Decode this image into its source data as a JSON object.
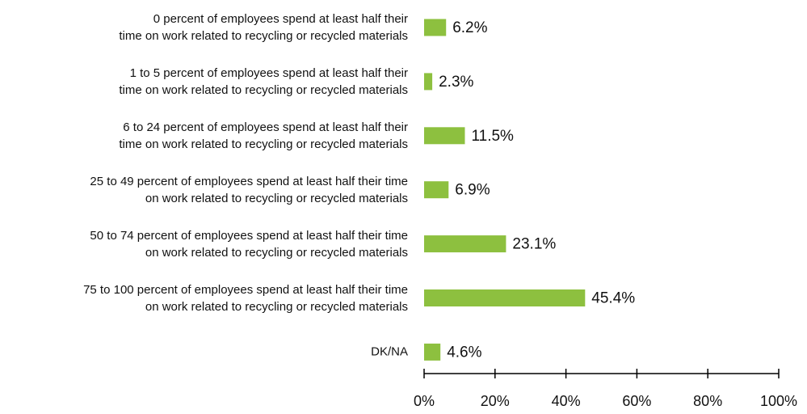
{
  "chart_data": {
    "type": "bar",
    "orientation": "horizontal",
    "categories": [
      "0 percent of employees spend at least half their\ntime on work related to recycling or recycled materials",
      "1 to 5 percent of employees spend at least half their\ntime on work related to recycling or recycled materials",
      "6 to 24 percent of employees spend at least half their\ntime on work related to recycling or recycled materials",
      "25 to 49 percent of employees spend at least half their time\non work related to recycling or recycled materials",
      "50 to 74 percent of employees spend at least half their time\non work related to recycling or recycled materials",
      "75 to 100 percent of employees spend at least half their time\non work related to recycling or recycled materials",
      "DK/NA"
    ],
    "values": [
      6.2,
      2.3,
      11.5,
      6.9,
      23.1,
      45.4,
      4.6
    ],
    "value_labels": [
      "6.2%",
      "2.3%",
      "11.5%",
      "6.9%",
      "23.1%",
      "45.4%",
      "4.6%"
    ],
    "color": "#8dc03f",
    "xlim": [
      0,
      100
    ],
    "xticks": [
      {
        "value": 0,
        "label": "0%"
      },
      {
        "value": 20,
        "label": "20%"
      },
      {
        "value": 40,
        "label": "40%"
      },
      {
        "value": 60,
        "label": "60%"
      },
      {
        "value": 80,
        "label": "80%"
      },
      {
        "value": 100,
        "label": "100%"
      }
    ]
  }
}
